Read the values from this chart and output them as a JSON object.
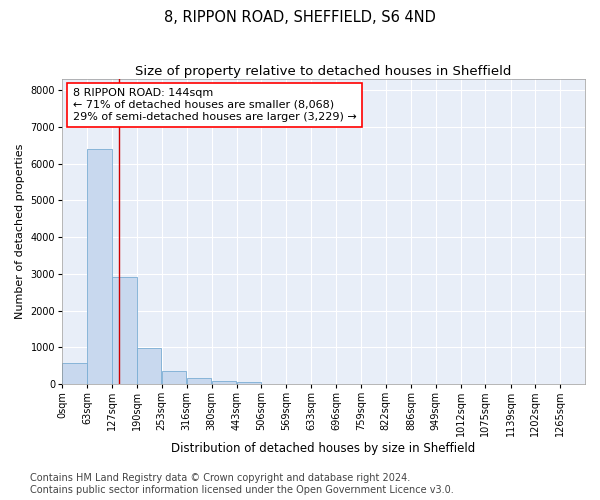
{
  "title1": "8, RIPPON ROAD, SHEFFIELD, S6 4ND",
  "title2": "Size of property relative to detached houses in Sheffield",
  "xlabel": "Distribution of detached houses by size in Sheffield",
  "ylabel": "Number of detached properties",
  "bar_color": "#c8d8ee",
  "bar_edge_color": "#7aadd4",
  "background_color": "#e8eef8",
  "grid_color": "#ffffff",
  "annotation_line1": "8 RIPPON ROAD: 144sqm",
  "annotation_line2": "← 71% of detached houses are smaller (8,068)",
  "annotation_line3": "29% of semi-detached houses are larger (3,229) →",
  "vline_x": 144,
  "vline_color": "#cc0000",
  "bin_edges": [
    0,
    63,
    127,
    190,
    253,
    316,
    380,
    443,
    506,
    569,
    633,
    696,
    759,
    822,
    886,
    949,
    1012,
    1075,
    1139,
    1202,
    1265,
    1328
  ],
  "bar_heights": [
    570,
    6400,
    2900,
    970,
    350,
    160,
    90,
    60,
    0,
    0,
    0,
    0,
    0,
    0,
    0,
    0,
    0,
    0,
    0,
    0,
    0
  ],
  "tick_labels": [
    "0sqm",
    "63sqm",
    "127sqm",
    "190sqm",
    "253sqm",
    "316sqm",
    "380sqm",
    "443sqm",
    "506sqm",
    "569sqm",
    "633sqm",
    "696sqm",
    "759sqm",
    "822sqm",
    "886sqm",
    "949sqm",
    "1012sqm",
    "1075sqm",
    "1139sqm",
    "1202sqm",
    "1265sqm"
  ],
  "ylim": [
    0,
    8300
  ],
  "yticks": [
    0,
    1000,
    2000,
    3000,
    4000,
    5000,
    6000,
    7000,
    8000
  ],
  "footer_text": "Contains HM Land Registry data © Crown copyright and database right 2024.\nContains public sector information licensed under the Open Government Licence v3.0.",
  "title1_fontsize": 10.5,
  "title2_fontsize": 9.5,
  "xlabel_fontsize": 8.5,
  "ylabel_fontsize": 8,
  "tick_fontsize": 7,
  "annotation_fontsize": 8,
  "footer_fontsize": 7
}
